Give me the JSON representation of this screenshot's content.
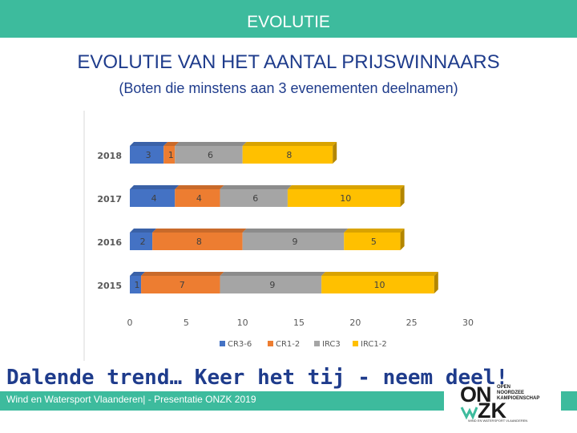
{
  "header": {
    "title": "EVOLUTIE"
  },
  "slide": {
    "title": "EVOLUTIE VAN HET AANTAL PRIJSWINNAARS",
    "subtitle": "(Boten die minstens aan 3 evenementen deelnamen)",
    "slogan": "Dalende trend… Keer het tij - neem deel!",
    "footer": "Wind en Watersport Vlaanderen| - Presentatie ONZK 2019"
  },
  "logo": {
    "line1": "ON",
    "line2": "ZK",
    "sub": [
      "OPEN",
      "NOORDZEE",
      "KAMPIOENSCHAP"
    ],
    "small": "WIND EN WATERSPORT VLAANDEREN"
  },
  "chart_data": {
    "type": "bar",
    "orientation": "horizontal",
    "stacked": true,
    "categories": [
      "2018",
      "2017",
      "2016",
      "2015"
    ],
    "series": [
      {
        "name": "CR3-6",
        "values": [
          3,
          4,
          2,
          1
        ],
        "color": "#4472c4"
      },
      {
        "name": "CR1-2",
        "values": [
          1,
          4,
          8,
          7
        ],
        "color": "#ed7d31"
      },
      {
        "name": "IRC3",
        "values": [
          6,
          6,
          9,
          9
        ],
        "color": "#a5a5a5"
      },
      {
        "name": "IRC1-2",
        "values": [
          8,
          10,
          5,
          10
        ],
        "color": "#ffc000"
      }
    ],
    "xlim": [
      0,
      30
    ],
    "xticks": [
      "0",
      "5",
      "10",
      "15",
      "20",
      "25",
      "30"
    ],
    "legend_position": "bottom",
    "grid": false
  }
}
